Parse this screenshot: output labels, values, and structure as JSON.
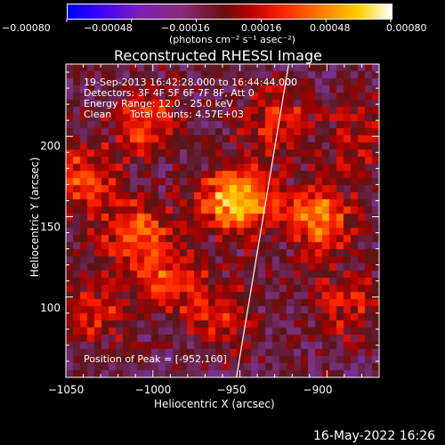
{
  "chart_data": {
    "type": "heatmap",
    "title": "Reconstructed RHESSI Image",
    "xlabel": "Heliocentric X (arcsec)",
    "ylabel": "Heliocentric Y (arcsec)",
    "xlim": [
      -1050,
      -870
    ],
    "ylim": [
      50,
      245
    ],
    "x_ticks": [
      "−1050",
      "−1000",
      "−950",
      "−900"
    ],
    "x_tick_values": [
      -1050,
      -1000,
      -950,
      -900
    ],
    "y_ticks": [
      "200",
      "150",
      "100"
    ],
    "y_tick_values": [
      200,
      150,
      100
    ],
    "colorbar": {
      "ticks": [
        "−0.00080",
        "−0.00048",
        "−0.00016",
        "0.00016",
        "0.00048",
        "0.00080"
      ],
      "tick_values": [
        -0.0008,
        -0.00048,
        -0.00016,
        0.00016,
        0.00048,
        0.0008
      ],
      "range": [
        -0.0008,
        0.0008
      ],
      "units": "(photons cm⁻² s⁻¹ asec⁻²)"
    },
    "annotations": [
      "19-Sep-2013 16:42:28.000 to 16:44:44.000",
      "Detectors: 3F 4F 5F 6F 7F 8F, Att 0",
      "Energy Range: 12.0 - 25.0 keV",
      "Clean      Total counts: 4.57E+03"
    ],
    "peak_label": "Position of Peak = [-952,160]",
    "peak": [
      -952,
      160
    ],
    "sources": [
      {
        "x": -952,
        "y": 160,
        "peak": 0.0008
      },
      {
        "x": -905,
        "y": 150,
        "peak": 0.0006
      },
      {
        "x": -1010,
        "y": 140,
        "peak": 0.00048
      },
      {
        "x": -1040,
        "y": 175,
        "peak": 0.00045
      },
      {
        "x": -1005,
        "y": 210,
        "peak": 0.0004
      },
      {
        "x": -930,
        "y": 210,
        "peak": 0.00035
      },
      {
        "x": -990,
        "y": 110,
        "peak": 0.0004
      },
      {
        "x": -960,
        "y": 90,
        "peak": 0.0003
      },
      {
        "x": -1035,
        "y": 90,
        "peak": 0.00035
      },
      {
        "x": -890,
        "y": 95,
        "peak": 0.0003
      },
      {
        "x": -880,
        "y": 200,
        "peak": 0.0003
      }
    ],
    "limb_line": [
      [
        -952,
        50
      ],
      [
        -922,
        245
      ]
    ]
  },
  "footer": {
    "timestamp": "16-May-2022 16:26"
  }
}
